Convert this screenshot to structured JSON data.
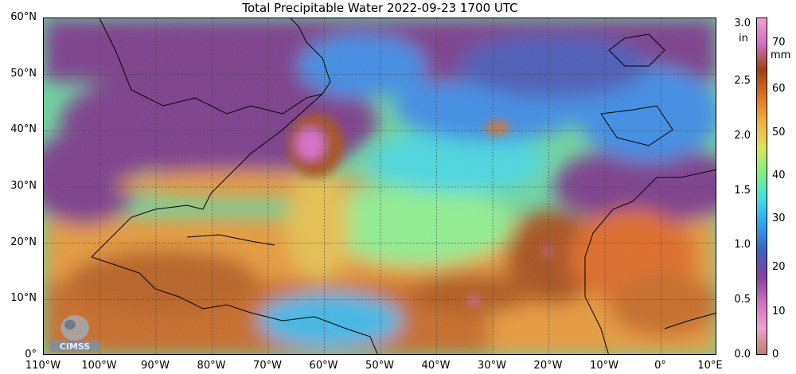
{
  "title": "Total Precipitable Water  2022-09-23 1700 UTC",
  "lat_labels": [
    "60°N",
    "50°N",
    "40°N",
    "30°N",
    "20°N",
    "10°N",
    "0°"
  ],
  "lon_labels": [
    "110°W",
    "100°W",
    "90°W",
    "80°W",
    "70°W",
    "60°W",
    "50°W",
    "40°W",
    "30°W",
    "20°W",
    "10°W",
    "0°",
    "10°E"
  ],
  "colorbar": {
    "inch_unit": "in",
    "mm_unit": "mm",
    "inch_ticks": [
      "3.0",
      "2.5",
      "2.0",
      "1.5",
      "1.0",
      "0.5",
      "0.0"
    ],
    "mm_ticks": [
      "70",
      "60",
      "50",
      "40",
      "30",
      "20",
      "10",
      "0"
    ],
    "colors": [
      "#c08070",
      "#f0a0d0",
      "#d070c0",
      "#8040a0",
      "#4060c0",
      "#30a0f0",
      "#40e0e0",
      "#80f080",
      "#e0e060",
      "#f0b040",
      "#e07020",
      "#a04010",
      "#d070c0",
      "#f0a0d0"
    ]
  },
  "palette": {
    "dry_purple": "#7a3a8a",
    "blue": "#3c8ce6",
    "cyan": "#46d6e0",
    "green": "#82e68c",
    "yellow": "#e6d85a",
    "orange": "#e89a3a",
    "brown": "#a8501c",
    "magenta": "#d66cc8"
  },
  "logo_text": "CIMSS"
}
